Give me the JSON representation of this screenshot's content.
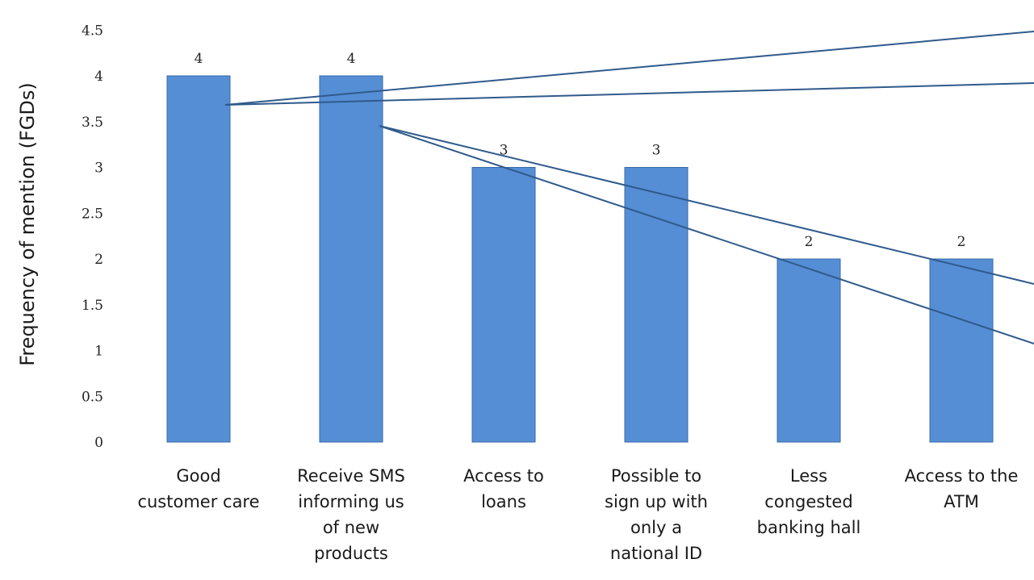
{
  "chart_data": {
    "type": "bar",
    "title": "",
    "xlabel": "",
    "ylabel": "Frequency of mention (FGDs)",
    "ylim": [
      0,
      4.5
    ],
    "ytick_step": 0.5,
    "ytick_labels": [
      "0",
      "0.5",
      "1",
      "1.5",
      "2",
      "2.5",
      "3",
      "3.5",
      "4",
      "4.5"
    ],
    "grid": false,
    "legend": "none",
    "categories": [
      [
        "Good",
        "customer care"
      ],
      [
        "Receive SMS",
        "informing us",
        "of new",
        "products"
      ],
      [
        "Access to",
        "loans"
      ],
      [
        "Possible to",
        "sign up with",
        "only a",
        "national ID"
      ],
      [
        "Less",
        "congested",
        "banking hall"
      ],
      [
        "Access to the",
        "ATM"
      ]
    ],
    "values": [
      4,
      4,
      3,
      3,
      2,
      2
    ],
    "data_labels": [
      "4",
      "4",
      "3",
      "3",
      "2",
      "2"
    ],
    "colors": {
      "bar_fill": "#558ED5",
      "bar_stroke": "#3A6BA8",
      "callout_line": "#2F5A8C"
    }
  }
}
